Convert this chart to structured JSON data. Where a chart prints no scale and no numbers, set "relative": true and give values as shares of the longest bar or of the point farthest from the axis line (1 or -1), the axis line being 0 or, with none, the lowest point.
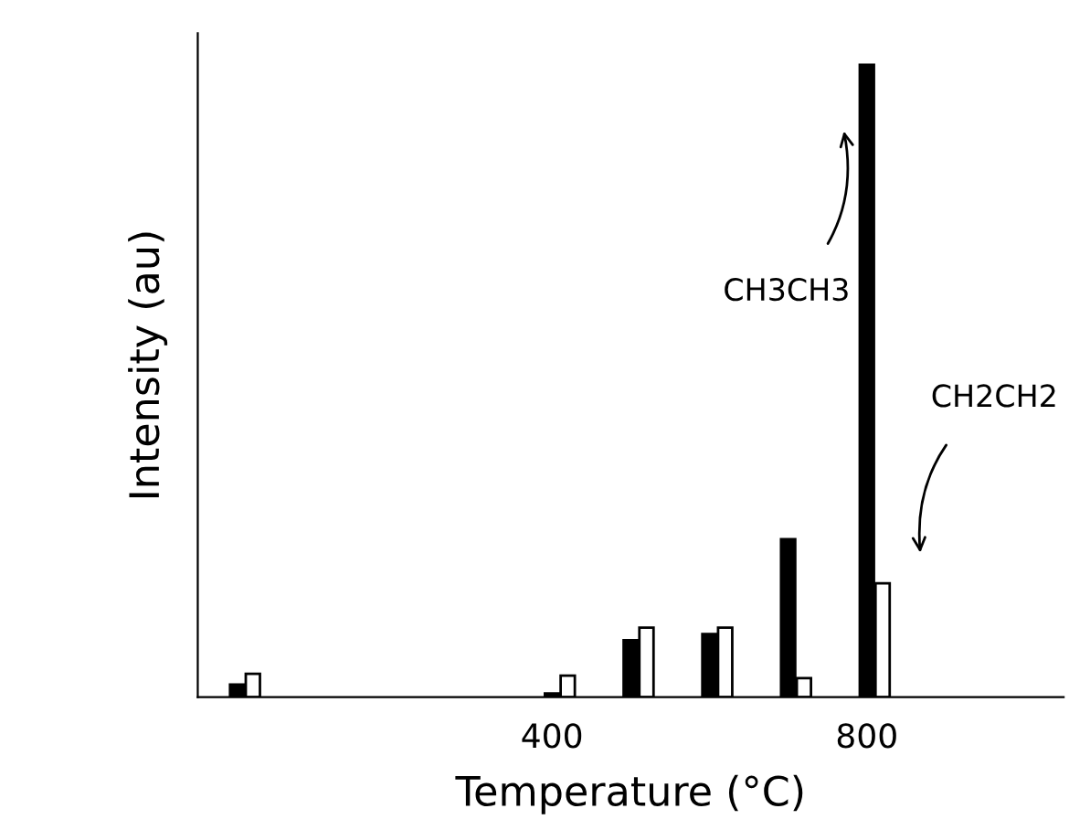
{
  "chart_data": {
    "type": "bar",
    "relative": true,
    "xlabel": "Temperature (°C)",
    "ylabel": "Intensity (au)",
    "xlim": [
      -50,
      1050
    ],
    "xticks": [
      400,
      800
    ],
    "grid": false,
    "legend": false,
    "series": [
      {
        "color": "#000000",
        "x": [
          0,
          400,
          500,
          600,
          700,
          800
        ],
        "values": [
          0.02,
          0.006,
          0.09,
          0.1,
          0.25,
          1
        ]
      },
      {
        "color": "#ffffff",
        "x": [
          20,
          420,
          520,
          620,
          720,
          820
        ],
        "values": [
          0.037,
          0.034,
          0.11,
          0.11,
          0.03,
          0.18
        ]
      }
    ],
    "annotations": [
      "CH3CH3",
      "CH2CH2"
    ]
  }
}
